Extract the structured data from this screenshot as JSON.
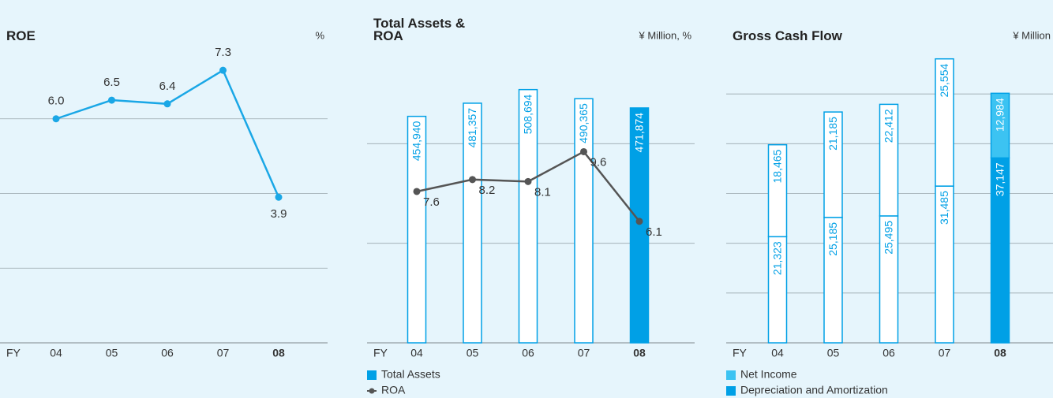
{
  "chart_data": [
    {
      "type": "line",
      "title": "ROE",
      "unit": "%",
      "x_label": "FY",
      "categories": [
        "04",
        "05",
        "06",
        "07",
        "08"
      ],
      "values": [
        6.0,
        6.5,
        6.4,
        7.3,
        3.9
      ],
      "value_labels": [
        "6.0",
        "6.5",
        "6.4",
        "7.3",
        "3.9"
      ],
      "color": "#1aa7e6",
      "ylim": [
        0,
        8
      ],
      "yticks": [
        0,
        2,
        4,
        6
      ],
      "grid": true
    },
    {
      "type": "bar_line",
      "title": "Total Assets & ROA",
      "unit": "¥ Million, %",
      "x_label": "FY",
      "categories": [
        "04",
        "05",
        "06",
        "07",
        "08"
      ],
      "series": [
        {
          "name": "Total Assets",
          "color": "#00a0e6",
          "fills": [
            "#ffffff",
            "#ffffff",
            "#ffffff",
            "#ffffff",
            "#00a0e6"
          ],
          "values": [
            454940,
            481357,
            508694,
            490365,
            471874
          ],
          "value_labels": [
            "454,940",
            "481,357",
            "508,694",
            "490,365",
            "471,874"
          ]
        },
        {
          "name": "ROA",
          "color": "#555555",
          "axis": "y2",
          "values": [
            7.6,
            8.2,
            8.1,
            9.6,
            6.1
          ]
        }
      ],
      "ylim": [
        0,
        600000
      ],
      "yticks": [
        0,
        200000,
        400000
      ],
      "y2lim": [
        0,
        15
      ],
      "grid": true
    },
    {
      "type": "stacked_bar",
      "title": "Gross Cash Flow",
      "unit": "¥ Million",
      "x_label": "FY",
      "categories": [
        "04",
        "05",
        "06",
        "07",
        "08"
      ],
      "series": [
        {
          "name": "Net Income",
          "color": "#3cc3f2",
          "fills": [
            "#ffffff",
            "#ffffff",
            "#ffffff",
            "#ffffff",
            "#3cc3f2"
          ],
          "values": [
            18465,
            21185,
            22412,
            25554,
            12984
          ],
          "value_labels": [
            "18,465",
            "21,185",
            "22,412",
            "25,554",
            "12,984"
          ]
        },
        {
          "name": "Depreciation and Amortization",
          "color": "#00a0e6",
          "fills": [
            "#ffffff",
            "#ffffff",
            "#ffffff",
            "#ffffff",
            "#00a0e6"
          ],
          "values": [
            21323,
            25185,
            25495,
            31485,
            37147
          ],
          "value_labels": [
            "21,323",
            "25,185",
            "25,495",
            "31,485",
            "37,147"
          ]
        }
      ],
      "ylim": [
        0,
        60000
      ],
      "yticks": [
        0,
        10000,
        20000,
        30000,
        40000,
        50000
      ],
      "grid": true
    }
  ]
}
